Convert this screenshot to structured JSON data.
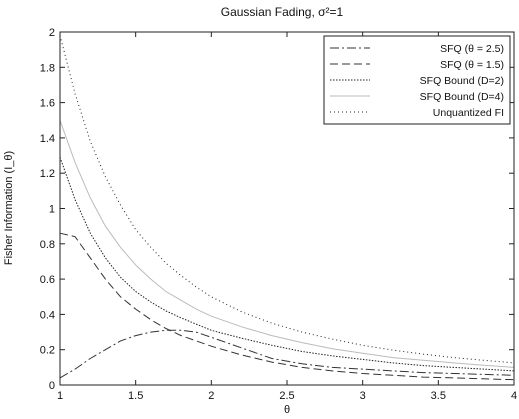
{
  "chart_data": {
    "type": "line",
    "title": "Gaussian Fading, σ²=1",
    "xlabel": "θ",
    "ylabel": "Fisher Information (I_θ)",
    "xlim": [
      1,
      4
    ],
    "ylim": [
      0,
      2
    ],
    "xticks": [
      1,
      1.5,
      2,
      2.5,
      3,
      3.5,
      4
    ],
    "xtick_labels": [
      "1",
      "1.5",
      "2",
      "2.5",
      "3",
      "3.5",
      "4"
    ],
    "yticks": [
      0,
      0.2,
      0.4,
      0.6,
      0.8,
      1,
      1.2,
      1.4,
      1.6,
      1.8,
      2
    ],
    "ytick_labels": [
      "0",
      "0.2",
      "0.4",
      "0.6",
      "0.8",
      "1",
      "1.2",
      "1.4",
      "1.6",
      "1.8",
      "2"
    ],
    "grid": false,
    "legend_position": "top-right",
    "x": [
      1,
      1.1,
      1.2,
      1.3,
      1.4,
      1.5,
      1.6,
      1.7,
      1.8,
      1.9,
      2,
      2.2,
      2.4,
      2.6,
      2.8,
      3,
      3.2,
      3.4,
      3.6,
      3.8,
      4
    ],
    "series": [
      {
        "name": "SFQ (θ = 2.5)",
        "dash": "9,3,2,3",
        "color": "#333333",
        "values": [
          0.04,
          0.09,
          0.15,
          0.2,
          0.25,
          0.28,
          0.3,
          0.31,
          0.31,
          0.3,
          0.27,
          0.21,
          0.15,
          0.12,
          0.1,
          0.09,
          0.08,
          0.07,
          0.065,
          0.06,
          0.055
        ]
      },
      {
        "name": "SFQ (θ = 1.5)",
        "dash": "8,4",
        "color": "#333333",
        "values": [
          0.86,
          0.84,
          0.72,
          0.6,
          0.5,
          0.43,
          0.37,
          0.32,
          0.28,
          0.25,
          0.22,
          0.17,
          0.13,
          0.1,
          0.08,
          0.065,
          0.055,
          0.045,
          0.04,
          0.035,
          0.03
        ]
      },
      {
        "name": "SFQ Bound (D=2)",
        "dash": "1.5,1.5",
        "color": "#222222",
        "values": [
          1.29,
          1.05,
          0.86,
          0.72,
          0.61,
          0.53,
          0.47,
          0.42,
          0.38,
          0.345,
          0.31,
          0.265,
          0.225,
          0.19,
          0.165,
          0.145,
          0.125,
          0.11,
          0.1,
          0.09,
          0.08
        ]
      },
      {
        "name": "SFQ Bound (D=4)",
        "dash": "",
        "color": "#bbbbbb",
        "values": [
          1.5,
          1.26,
          1.06,
          0.9,
          0.78,
          0.68,
          0.6,
          0.53,
          0.48,
          0.43,
          0.39,
          0.33,
          0.28,
          0.24,
          0.205,
          0.18,
          0.155,
          0.14,
          0.125,
          0.112,
          0.1
        ]
      },
      {
        "name": "Unquantized FI",
        "dash": "1,3",
        "color": "#222222",
        "values": [
          1.98,
          1.65,
          1.38,
          1.18,
          1.02,
          0.88,
          0.78,
          0.69,
          0.62,
          0.555,
          0.5,
          0.415,
          0.35,
          0.3,
          0.26,
          0.225,
          0.198,
          0.175,
          0.155,
          0.14,
          0.125
        ]
      }
    ]
  }
}
